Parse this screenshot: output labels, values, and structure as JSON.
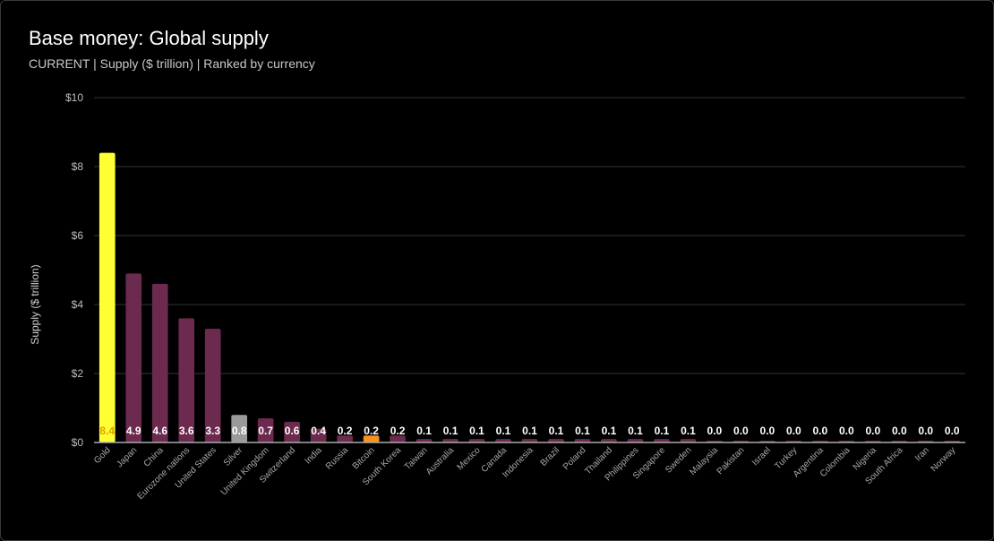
{
  "header": {
    "title": "Base money: Global supply",
    "subtitle": "CURRENT | Supply ($ trillion) | Ranked by currency"
  },
  "chart_data": {
    "type": "bar",
    "title": "Base money: Global supply",
    "subtitle": "CURRENT | Supply ($ trillion) | Ranked by currency",
    "ylabel": "Supply ($ trillion)",
    "xlabel": "",
    "ylim": [
      0,
      10
    ],
    "y_ticks": [
      "$0",
      "$2",
      "$4",
      "$6",
      "$8",
      "$10"
    ],
    "grid": true,
    "categories": [
      "Gold",
      "Japan",
      "China",
      "Eurozone nations",
      "United States",
      "Silver",
      "United Kingdom",
      "Switzerland",
      "India",
      "Russia",
      "Bitcoin",
      "South Korea",
      "Taiwan",
      "Australia",
      "Mexico",
      "Canada",
      "Indonesia",
      "Brazil",
      "Poland",
      "Thailand",
      "Philippines",
      "Singapore",
      "Sweden",
      "Malaysia",
      "Pakistan",
      "Israel",
      "Turkey",
      "Argentina",
      "Colombia",
      "Nigeria",
      "South Africa",
      "Iran",
      "Norway"
    ],
    "values": [
      8.4,
      4.9,
      4.6,
      3.6,
      3.3,
      0.8,
      0.7,
      0.6,
      0.4,
      0.2,
      0.2,
      0.2,
      0.1,
      0.1,
      0.1,
      0.1,
      0.1,
      0.1,
      0.1,
      0.1,
      0.1,
      0.1,
      0.1,
      0.0,
      0.0,
      0.0,
      0.0,
      0.0,
      0.0,
      0.0,
      0.0,
      0.0,
      0.0
    ],
    "data_labels": [
      "8.4",
      "4.9",
      "4.6",
      "3.6",
      "3.3",
      "0.8",
      "0.7",
      "0.6",
      "0.4",
      "0.2",
      "0.2",
      "0.2",
      "0.1",
      "0.1",
      "0.1",
      "0.1",
      "0.1",
      "0.1",
      "0.1",
      "0.1",
      "0.1",
      "0.1",
      "0.1",
      "0.0",
      "0.0",
      "0.0",
      "0.0",
      "0.0",
      "0.0",
      "0.0",
      "0.0",
      "0.0",
      "0.0"
    ],
    "colors": {
      "default": "#6b2a4e",
      "Gold": "#ffff33",
      "Silver": "#9a9a9a",
      "Bitcoin": "#f7931a",
      "grid": "#333333",
      "axis": "#aaaaaa",
      "label_default": "#ffffff",
      "label_Gold": "#e0a000"
    }
  }
}
